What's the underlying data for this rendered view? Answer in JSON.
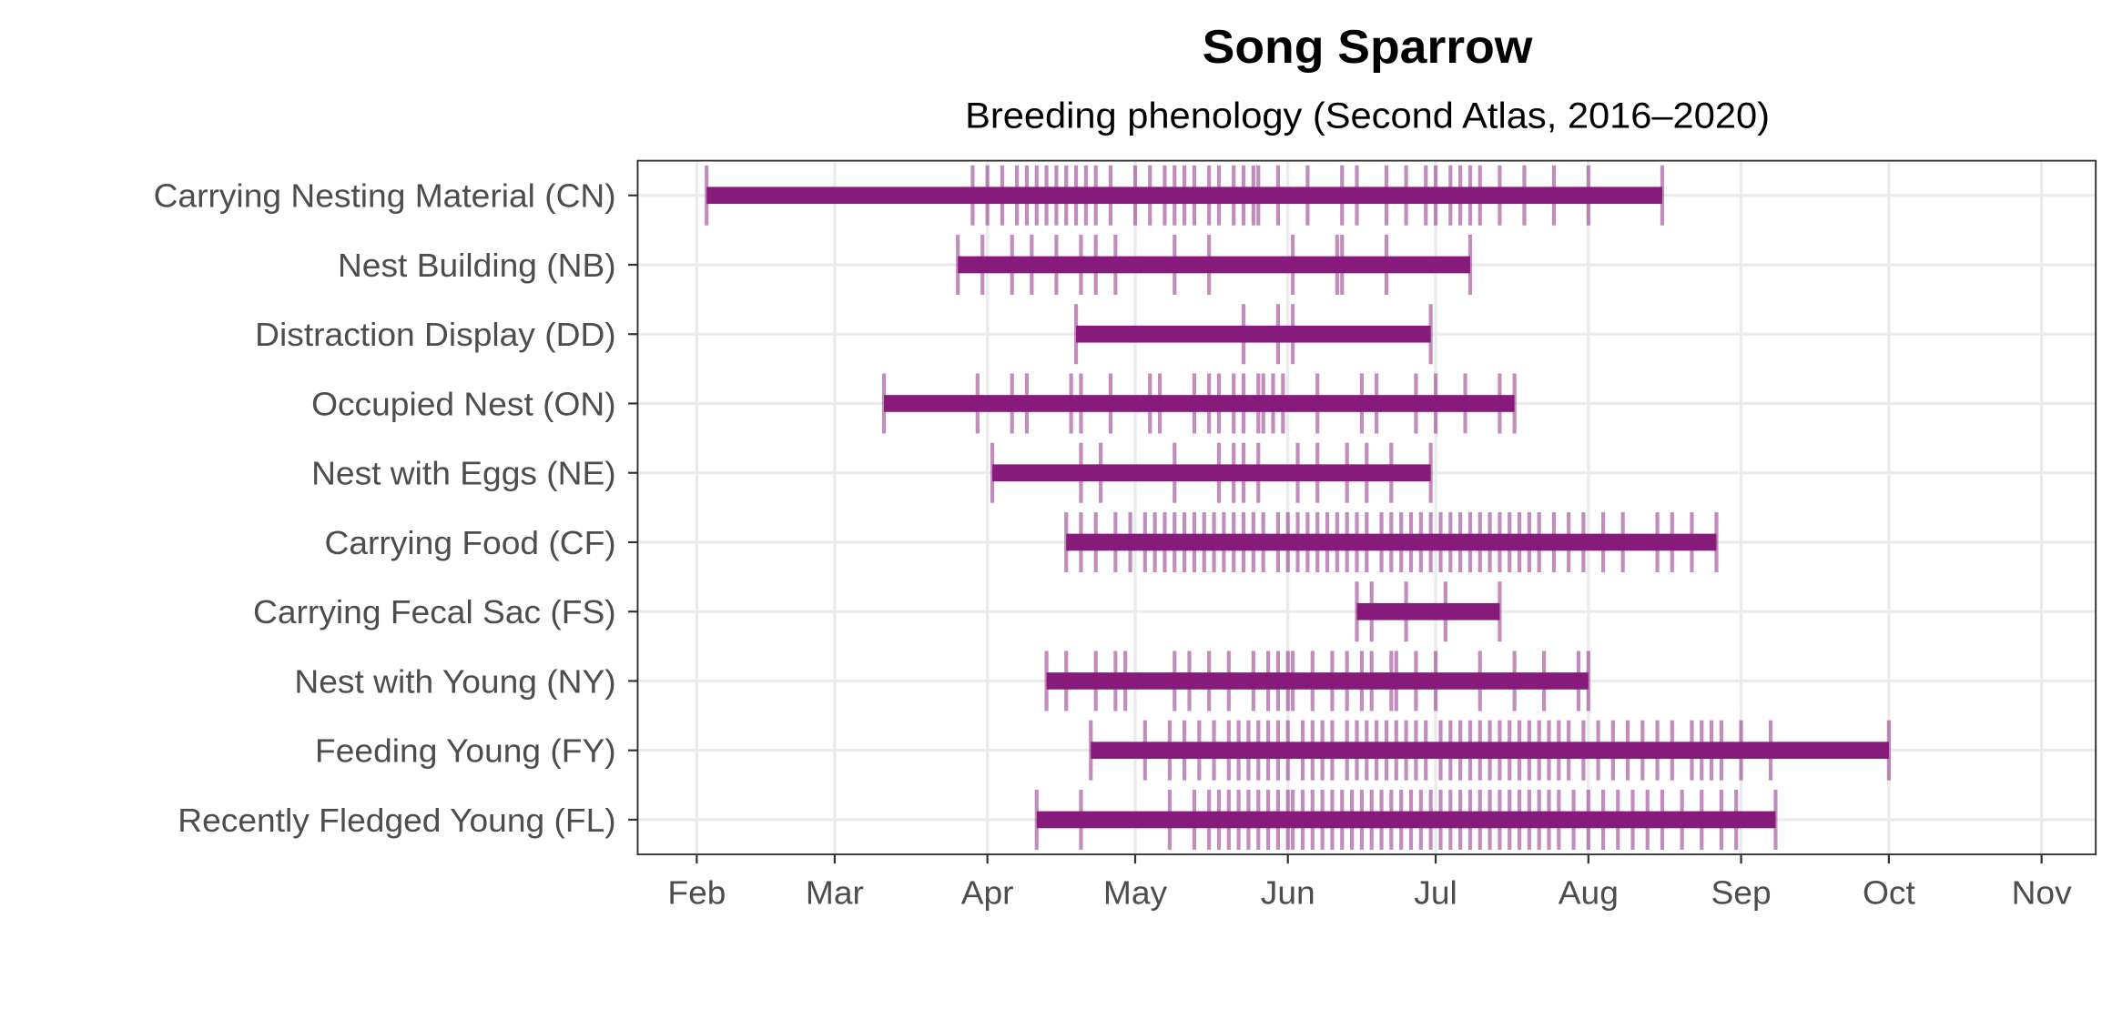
{
  "chart_data": {
    "type": "range-bar-with-rug",
    "title": "Song Sparrow",
    "subtitle": "Breeding phenology (Second Atlas, 2016–2020)",
    "xlabel": "",
    "ylabel": "",
    "x_units": "day of year",
    "xlim": [
      20,
      316
    ],
    "x_ticks": [
      {
        "label": "Feb",
        "day": 32
      },
      {
        "label": "Mar",
        "day": 60
      },
      {
        "label": "Apr",
        "day": 91
      },
      {
        "label": "May",
        "day": 121
      },
      {
        "label": "Jun",
        "day": 152
      },
      {
        "label": "Jul",
        "day": 182
      },
      {
        "label": "Aug",
        "day": 213
      },
      {
        "label": "Sep",
        "day": 244
      },
      {
        "label": "Oct",
        "day": 274
      },
      {
        "label": "Nov",
        "day": 305
      }
    ],
    "grid": true,
    "colors": {
      "bar": "#861b7b",
      "tick": "#861b7b",
      "grid": "#ebebeb",
      "axis": "#333333"
    },
    "series": [
      {
        "name": "Recently Fledged Young (FL)",
        "start": 101,
        "end": 251,
        "observations": [
          101,
          110,
          128,
          133,
          136,
          138,
          140,
          142,
          144,
          146,
          148,
          150,
          152,
          153,
          155,
          157,
          159,
          161,
          163,
          165,
          167,
          169,
          171,
          173,
          175,
          177,
          179,
          181,
          183,
          185,
          187,
          189,
          191,
          193,
          195,
          197,
          199,
          201,
          203,
          205,
          207,
          210,
          213,
          216,
          219,
          222,
          225,
          228,
          232,
          236,
          240,
          243,
          251
        ]
      },
      {
        "name": "Feeding Young (FY)",
        "start": 112,
        "end": 274,
        "observations": [
          112,
          123,
          128,
          131,
          134,
          137,
          140,
          142,
          144,
          146,
          148,
          150,
          152,
          155,
          157,
          159,
          161,
          164,
          166,
          168,
          170,
          172,
          174,
          176,
          178,
          180,
          183,
          185,
          187,
          189,
          191,
          193,
          195,
          197,
          199,
          201,
          203,
          205,
          207,
          209,
          212,
          215,
          218,
          221,
          224,
          227,
          230,
          234,
          236,
          238,
          240,
          244,
          250,
          274
        ]
      },
      {
        "name": "Nest with Young (NY)",
        "start": 103,
        "end": 213,
        "observations": [
          103,
          107,
          113,
          117,
          119,
          129,
          132,
          136,
          140,
          145,
          148,
          150,
          152,
          153,
          157,
          161,
          164,
          167,
          169,
          173,
          174,
          178,
          182,
          191,
          198,
          204,
          211,
          213
        ]
      },
      {
        "name": "Carrying Fecal Sac (FS)",
        "start": 166,
        "end": 195,
        "observations": [
          166,
          169,
          176,
          184,
          195
        ]
      },
      {
        "name": "Carrying Food (CF)",
        "start": 107,
        "end": 239,
        "observations": [
          107,
          110,
          113,
          117,
          120,
          123,
          125,
          127,
          129,
          131,
          133,
          135,
          137,
          139,
          141,
          143,
          145,
          147,
          150,
          152,
          154,
          156,
          158,
          160,
          162,
          164,
          166,
          168,
          171,
          173,
          175,
          177,
          179,
          181,
          183,
          185,
          187,
          189,
          191,
          193,
          195,
          197,
          199,
          201,
          203,
          206,
          209,
          212,
          216,
          220,
          227,
          230,
          234,
          239
        ]
      },
      {
        "name": "Nest with Eggs (NE)",
        "start": 92,
        "end": 181,
        "observations": [
          92,
          110,
          114,
          129,
          138,
          141,
          143,
          146,
          154,
          158,
          164,
          168,
          173,
          181
        ]
      },
      {
        "name": "Occupied Nest (ON)",
        "start": 70,
        "end": 198,
        "observations": [
          70,
          89,
          96,
          99,
          108,
          110,
          116,
          124,
          126,
          133,
          136,
          138,
          141,
          143,
          146,
          147,
          149,
          151,
          158,
          167,
          170,
          178,
          182,
          188,
          195,
          198
        ]
      },
      {
        "name": "Distraction Display (DD)",
        "start": 109,
        "end": 181,
        "observations": [
          109,
          143,
          150,
          153,
          181
        ]
      },
      {
        "name": "Nest Building (NB)",
        "start": 85,
        "end": 189,
        "observations": [
          85,
          90,
          96,
          100,
          105,
          110,
          113,
          117,
          129,
          136,
          153,
          162,
          163,
          172,
          189
        ]
      },
      {
        "name": "Carrying Nesting Material (CN)",
        "start": 34,
        "end": 228,
        "observations": [
          34,
          88,
          91,
          94,
          97,
          99,
          101,
          103,
          105,
          107,
          109,
          111,
          113,
          116,
          121,
          124,
          127,
          129,
          131,
          133,
          136,
          138,
          141,
          143,
          145,
          146,
          150,
          156,
          163,
          166,
          172,
          176,
          180,
          182,
          185,
          187,
          189,
          191,
          195,
          200,
          206,
          213,
          228
        ]
      }
    ]
  }
}
